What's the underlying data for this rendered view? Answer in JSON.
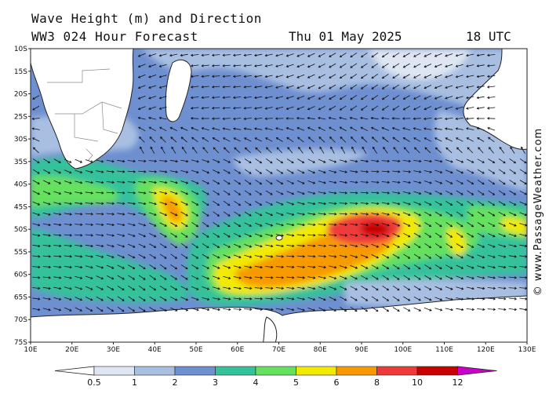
{
  "header": {
    "title": "Wave Height (m) and Direction",
    "model": "WW3 024 Hour Forecast",
    "date": "Thu 01 May 2025",
    "time": "18 UTC"
  },
  "credit": "© www.PassageWeather.com",
  "map": {
    "lat_labels": [
      "10S",
      "15S",
      "20S",
      "25S",
      "30S",
      "35S",
      "40S",
      "45S",
      "50S",
      "55S",
      "60S",
      "65S",
      "70S",
      "75S"
    ],
    "lon_labels": [
      "10E",
      "20E",
      "30E",
      "40E",
      "50E",
      "60E",
      "70E",
      "80E",
      "90E",
      "100E",
      "110E",
      "120E",
      "130E"
    ],
    "lat_range": [
      -10,
      -75
    ],
    "lon_range": [
      10,
      130
    ],
    "land_color": "#ffffff",
    "border_color": "#888888",
    "arrow_color": "#111111"
  },
  "legend": {
    "ticks": [
      "0.5",
      "1",
      "2",
      "3",
      "4",
      "5",
      "6",
      "8",
      "10",
      "12"
    ],
    "colors": [
      "#ffffff",
      "#dfe6f3",
      "#a8bfe2",
      "#6e8fd0",
      "#35c29b",
      "#66e05f",
      "#f2ea00",
      "#f79a00",
      "#ee3a3a",
      "#c80000",
      "#cc00cc"
    ]
  }
}
